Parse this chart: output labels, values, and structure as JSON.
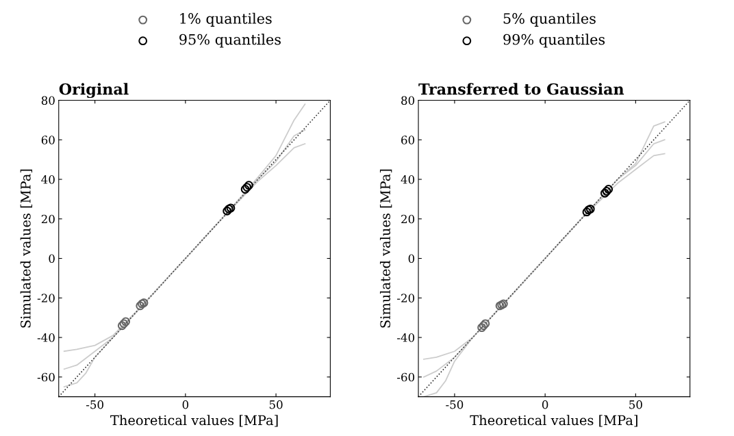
{
  "chart_data": [
    {
      "type": "scatter",
      "title": "Original",
      "xlabel": "Theoretical values [MPa]",
      "ylabel": "Simulated values [MPa]",
      "xlim": [
        -70,
        80
      ],
      "ylim": [
        -70,
        80
      ],
      "xticks": [
        -50,
        0,
        50
      ],
      "yticks": [
        -60,
        -40,
        -20,
        0,
        20,
        40,
        60,
        80
      ],
      "grid": false,
      "legend": "top",
      "series": [
        {
          "type": "line",
          "color": "#cccccc",
          "line_style": "solid",
          "x": [
            -67,
            -60,
            -50,
            -40,
            -20,
            0,
            20,
            40,
            50,
            60,
            66
          ],
          "values": [
            -47,
            -46,
            -44,
            -39,
            -20,
            0,
            20,
            41,
            52,
            70,
            78
          ]
        },
        {
          "type": "line",
          "color": "#cccccc",
          "line_style": "solid",
          "x": [
            -67,
            -60,
            -50,
            -40,
            -20,
            0,
            20,
            40,
            50,
            60,
            66
          ],
          "values": [
            -56,
            -54,
            -47,
            -40,
            -20,
            0,
            20,
            40,
            49,
            62,
            65
          ]
        },
        {
          "type": "line",
          "color": "#cccccc",
          "line_style": "solid",
          "x": [
            -67,
            -60,
            -55,
            -50,
            -40,
            -20,
            0,
            20,
            40,
            50,
            60,
            66
          ],
          "values": [
            -65,
            -63,
            -58,
            -50,
            -40,
            -20,
            0,
            20,
            39,
            47,
            56,
            58
          ]
        },
        {
          "type": "line",
          "color": "#333333",
          "line_style": "dotted",
          "x": [
            -70,
            80
          ],
          "values": [
            -70,
            80
          ]
        },
        {
          "name": "1% quantiles",
          "marker": "circle",
          "color": "#666666",
          "x": [
            -35,
            -34,
            -33
          ],
          "values": [
            -34,
            -33,
            -32
          ]
        },
        {
          "name": "5% quantiles",
          "marker": "circle",
          "color": "#666666",
          "x": [
            -25,
            -24,
            -23
          ],
          "values": [
            -24,
            -23,
            -22.5
          ]
        },
        {
          "name": "95% quantiles",
          "marker": "circle",
          "color": "#000000",
          "x": [
            23,
            24,
            25
          ],
          "values": [
            24,
            25,
            25.5
          ]
        },
        {
          "name": "99% quantiles",
          "marker": "circle",
          "color": "#000000",
          "x": [
            33,
            34,
            35
          ],
          "values": [
            35,
            36,
            37
          ]
        }
      ]
    },
    {
      "type": "scatter",
      "title": "Transferred to Gaussian",
      "xlabel": "Theoretical values [MPa]",
      "ylabel": "Simulated values [MPa]",
      "xlim": [
        -70,
        80
      ],
      "ylim": [
        -70,
        80
      ],
      "xticks": [
        -50,
        0,
        50
      ],
      "yticks": [
        -60,
        -40,
        -20,
        0,
        20,
        40,
        60,
        80
      ],
      "grid": false,
      "series": [
        {
          "type": "line",
          "color": "#cccccc",
          "line_style": "solid",
          "x": [
            -67,
            -60,
            -50,
            -40,
            -20,
            0,
            20,
            40,
            50,
            60,
            66
          ],
          "values": [
            -51,
            -50,
            -47,
            -40,
            -20,
            0,
            20,
            40,
            48,
            67,
            69
          ]
        },
        {
          "type": "line",
          "color": "#cccccc",
          "line_style": "solid",
          "x": [
            -67,
            -60,
            -50,
            -40,
            -20,
            0,
            20,
            40,
            50,
            60,
            66
          ],
          "values": [
            -60,
            -57,
            -50,
            -40,
            -20,
            0,
            20,
            40,
            47,
            58,
            60
          ]
        },
        {
          "type": "line",
          "color": "#cccccc",
          "line_style": "solid",
          "x": [
            -67,
            -60,
            -55,
            -50,
            -40,
            -20,
            0,
            20,
            40,
            50,
            60,
            66
          ],
          "values": [
            -70,
            -68,
            -62,
            -52,
            -40,
            -20,
            0,
            20,
            38,
            45,
            52,
            53
          ]
        },
        {
          "type": "line",
          "color": "#333333",
          "line_style": "dotted",
          "x": [
            -70,
            80
          ],
          "values": [
            -70,
            80
          ]
        },
        {
          "marker": "circle",
          "color": "#666666",
          "x": [
            -35,
            -34,
            -33
          ],
          "values": [
            -35,
            -34,
            -33
          ]
        },
        {
          "marker": "circle",
          "color": "#666666",
          "x": [
            -25,
            -24,
            -23
          ],
          "values": [
            -24,
            -23.5,
            -23
          ]
        },
        {
          "marker": "circle",
          "color": "#000000",
          "x": [
            23,
            24,
            25
          ],
          "values": [
            23.5,
            24.5,
            25
          ]
        },
        {
          "marker": "circle",
          "color": "#000000",
          "x": [
            33,
            34,
            35
          ],
          "values": [
            33,
            34,
            35
          ]
        }
      ]
    }
  ]
}
